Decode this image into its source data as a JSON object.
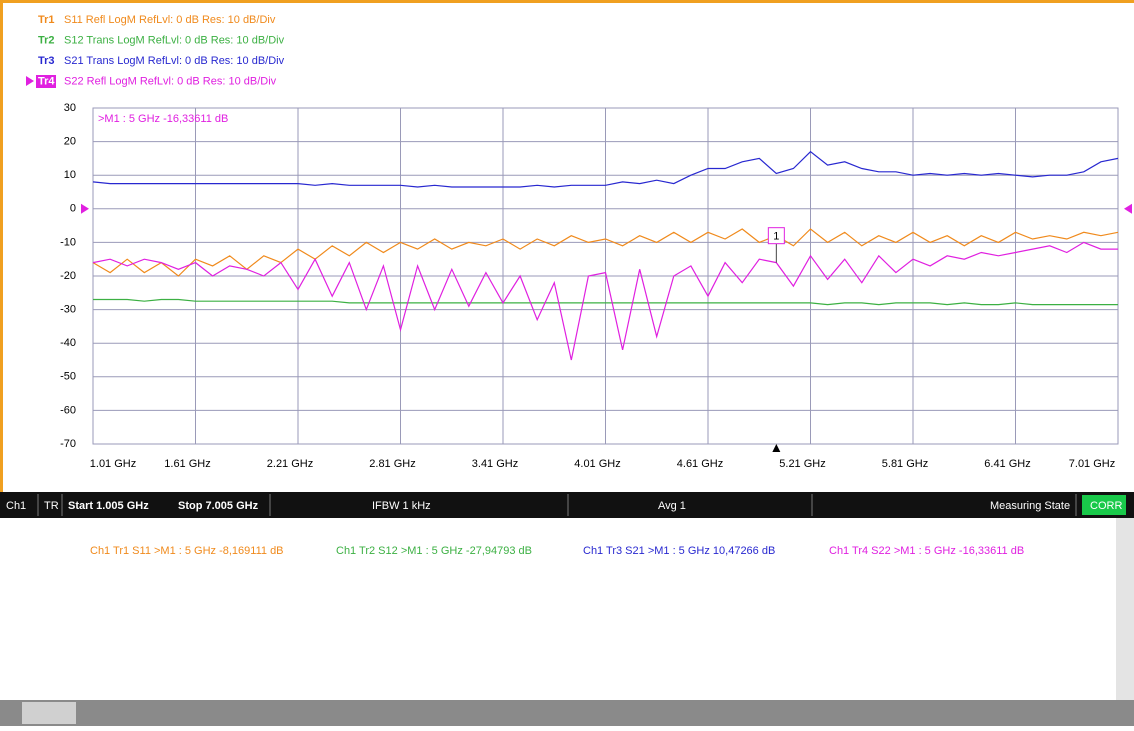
{
  "chart_data": {
    "type": "line",
    "annotation": ">M1 :  5 GHz -16,33611 dB",
    "marker": {
      "label": "1",
      "x": 5.005
    },
    "x": [
      1.005,
      1.105,
      1.205,
      1.305,
      1.405,
      1.505,
      1.605,
      1.705,
      1.805,
      1.905,
      2.005,
      2.105,
      2.205,
      2.305,
      2.405,
      2.505,
      2.605,
      2.705,
      2.805,
      2.905,
      3.005,
      3.105,
      3.205,
      3.305,
      3.405,
      3.505,
      3.605,
      3.705,
      3.805,
      3.905,
      4.005,
      4.105,
      4.205,
      4.305,
      4.405,
      4.505,
      4.605,
      4.705,
      4.805,
      4.905,
      5.005,
      5.105,
      5.205,
      5.305,
      5.405,
      5.505,
      5.605,
      5.705,
      5.805,
      5.905,
      6.005,
      6.105,
      6.205,
      6.305,
      6.405,
      6.505,
      6.605,
      6.705,
      6.805,
      6.905,
      7.005
    ],
    "xlim": [
      1.005,
      7.005
    ],
    "xticks": [
      {
        "value": 1.005,
        "label": "1.01 GHz"
      },
      {
        "value": 1.605,
        "label": "1.61 GHz"
      },
      {
        "value": 2.205,
        "label": "2.21 GHz"
      },
      {
        "value": 2.805,
        "label": "2.81 GHz"
      },
      {
        "value": 3.405,
        "label": "3.41 GHz"
      },
      {
        "value": 4.005,
        "label": "4.01 GHz"
      },
      {
        "value": 4.605,
        "label": "4.61 GHz"
      },
      {
        "value": 5.205,
        "label": "5.21 GHz"
      },
      {
        "value": 5.805,
        "label": "5.81 GHz"
      },
      {
        "value": 6.405,
        "label": "6.41 GHz"
      },
      {
        "value": 7.005,
        "label": "7.01 GHz"
      }
    ],
    "ylim": [
      -70,
      30
    ],
    "yticks": [
      30,
      20,
      10,
      0,
      -10,
      -20,
      -30,
      -40,
      -50,
      -60,
      -70
    ],
    "grid": true,
    "series": [
      {
        "name": "Tr1",
        "label": "S11 Refl LogM RefLvl: 0  dB Res: 10  dB/Div",
        "color": "#f08a1c",
        "values": [
          -16,
          -19,
          -15,
          -19,
          -16,
          -20,
          -15,
          -17,
          -14,
          -18,
          -14,
          -16,
          -12,
          -15,
          -11,
          -14,
          -10,
          -13,
          -10,
          -12,
          -9,
          -12,
          -10,
          -11,
          -9,
          -12,
          -9,
          -11,
          -8,
          -10,
          -9,
          -11,
          -8,
          -10,
          -7,
          -10,
          -7,
          -9,
          -6,
          -10,
          -8,
          -11,
          -6,
          -10,
          -7,
          -11,
          -8,
          -10,
          -7,
          -10,
          -8,
          -11,
          -8,
          -10,
          -7,
          -9,
          -8,
          -9,
          -7,
          -8,
          -7
        ]
      },
      {
        "name": "Tr2",
        "label": "S12 Trans LogM RefLvl: 0  dB Res: 10  dB/Div",
        "color": "#3cb043",
        "values": [
          -27,
          -27,
          -27,
          -27.5,
          -27,
          -27,
          -27.5,
          -27.5,
          -27.5,
          -27.5,
          -27.5,
          -27.5,
          -27.5,
          -27.5,
          -27.5,
          -28,
          -28,
          -28,
          -28,
          -28,
          -28,
          -28,
          -28,
          -28,
          -28,
          -28,
          -28,
          -28,
          -28,
          -28,
          -28,
          -28,
          -28,
          -28,
          -28,
          -28,
          -28,
          -28,
          -28,
          -28,
          -28,
          -28,
          -28,
          -28.5,
          -28,
          -28,
          -28.5,
          -28,
          -28,
          -28,
          -28.5,
          -28,
          -28.5,
          -28.5,
          -28,
          -28.5,
          -28.5,
          -28.5,
          -28.5,
          -28.5,
          -28.5
        ]
      },
      {
        "name": "Tr3",
        "label": "S21 Trans LogM RefLvl: 0  dB Res: 10  dB/Div",
        "color": "#2828d0",
        "values": [
          8,
          7.5,
          7.5,
          7.5,
          7.5,
          7.5,
          7.5,
          7.5,
          7.5,
          7.5,
          7.5,
          7.5,
          7.5,
          7,
          7.5,
          7,
          7,
          7,
          7,
          6.5,
          7,
          6.5,
          6.5,
          6.5,
          6.5,
          6.5,
          7,
          6.5,
          7,
          7,
          7,
          8,
          7.5,
          8.5,
          7.5,
          10,
          12,
          12,
          14,
          15,
          10.5,
          12,
          17,
          13,
          14,
          12,
          11,
          11,
          10,
          10.5,
          10,
          10.5,
          10,
          10.5,
          10,
          9.5,
          10,
          10,
          11,
          14,
          15
        ]
      },
      {
        "name": "Tr4",
        "label": "S22 Refl LogM RefLvl: 0  dB Res: 10  dB/Div",
        "color": "#e020e0",
        "values": [
          -16,
          -15,
          -17,
          -15,
          -16,
          -18,
          -16,
          -20,
          -17,
          -18,
          -20,
          -16,
          -24,
          -15,
          -26,
          -16,
          -30,
          -17,
          -36,
          -17,
          -30,
          -18,
          -29,
          -19,
          -28,
          -20,
          -33,
          -22,
          -45,
          -20,
          -19,
          -42,
          -18,
          -38,
          -20,
          -17,
          -26,
          -16,
          -22,
          -15,
          -16,
          -23,
          -14,
          -21,
          -15,
          -22,
          -14,
          -19,
          -15,
          -17,
          -14,
          -15,
          -13,
          -14,
          -13,
          -12,
          -11,
          -13,
          -10,
          -12,
          -12
        ]
      }
    ]
  },
  "status_bar": [
    "Ch1",
    "TR",
    "Start 1.005 GHz",
    "Stop 7.005 GHz",
    "IFBW 1 kHz",
    "Avg 1",
    "Measuring State",
    "CORR"
  ],
  "marker_readouts": [
    "Ch1 Tr1  S11 >M1 :  5 GHz -8,169111  dB",
    "Ch1 Tr2  S12 >M1 :  5 GHz -27,94793  dB",
    "Ch1 Tr3  S21 >M1 :  5 GHz 10,47266  dB",
    "Ch1 Tr4  S22 >M1 :  5 GHz -16,33611  dB"
  ]
}
